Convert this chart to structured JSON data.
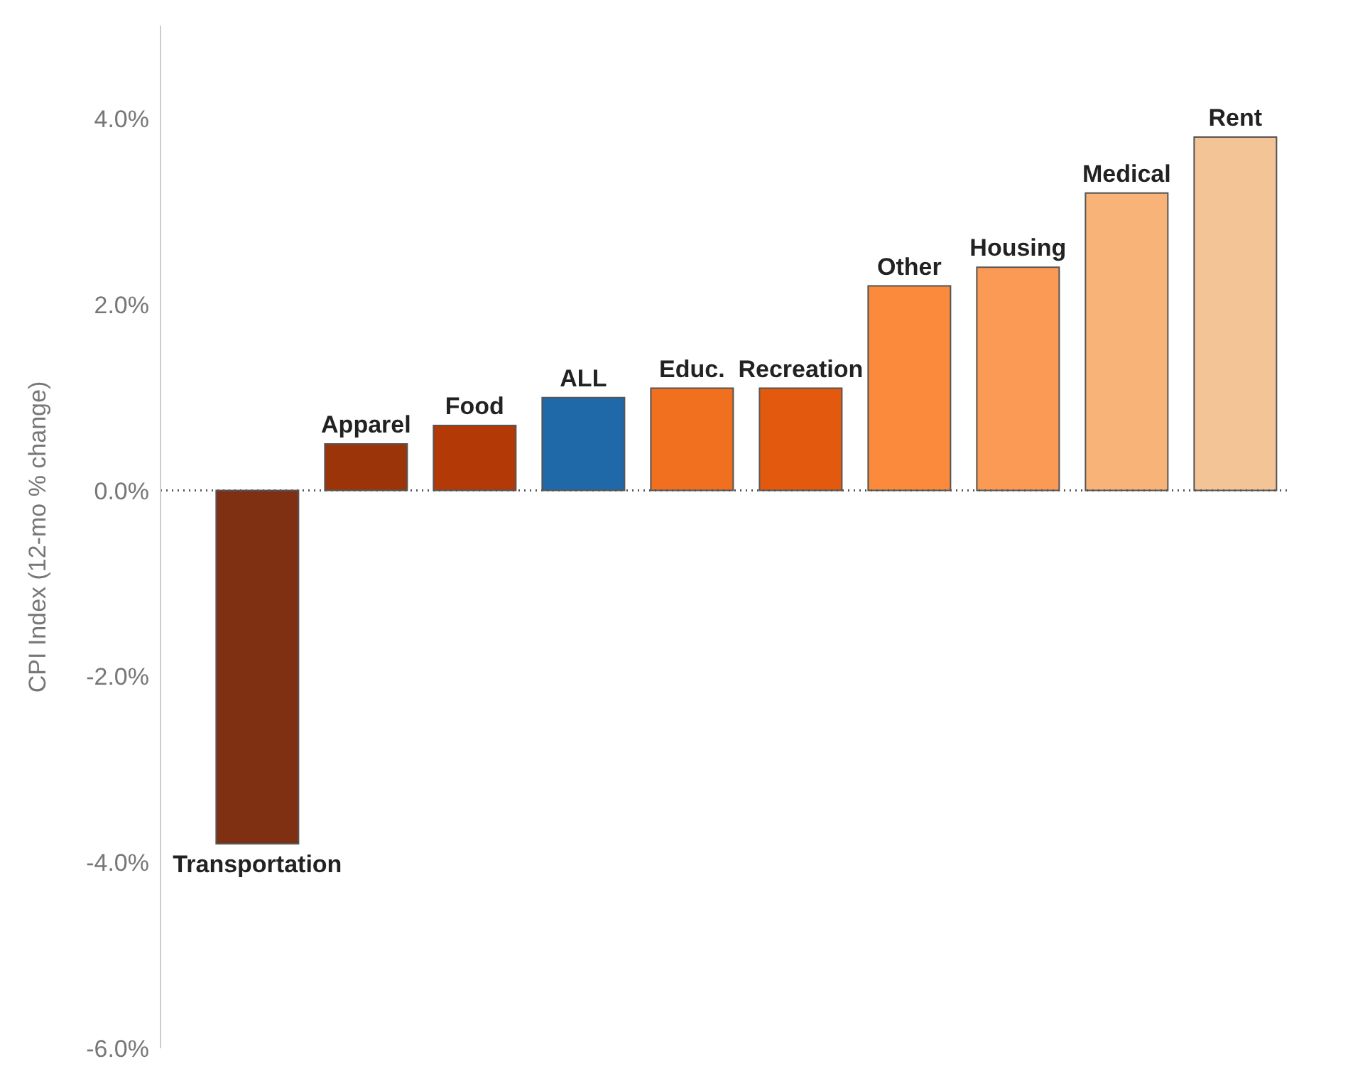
{
  "chart_data": {
    "type": "bar",
    "ylabel": "CPI Index (12-mo % change)",
    "categories": [
      "Transportation",
      "Apparel",
      "Food",
      "ALL",
      "Educ.",
      "Recreation",
      "Other",
      "Housing",
      "Medical",
      "Rent"
    ],
    "values": [
      -3.8,
      0.5,
      0.7,
      1.0,
      1.1,
      1.1,
      2.2,
      2.4,
      3.2,
      3.8
    ],
    "colors": [
      "#7f2f12",
      "#9c3409",
      "#b33a06",
      "#1f69a8",
      "#f07020",
      "#e35a0e",
      "#fb8a3c",
      "#fb9a55",
      "#f8b478",
      "#f2c496"
    ],
    "ylim": [
      -6,
      5
    ],
    "yticks": [
      {
        "value": -6,
        "label": "-6.0%"
      },
      {
        "value": -4,
        "label": "-4.0%"
      },
      {
        "value": -2,
        "label": "-2.0%"
      },
      {
        "value": 0,
        "label": "0.0%"
      },
      {
        "value": 2,
        "label": "2.0%"
      },
      {
        "value": 4,
        "label": "4.0%"
      }
    ],
    "ref_lines": [
      {
        "axis": "y",
        "value": 0,
        "line_style": "dotted",
        "color": "#555555"
      }
    ],
    "tick_labels": "y",
    "grid": false
  }
}
